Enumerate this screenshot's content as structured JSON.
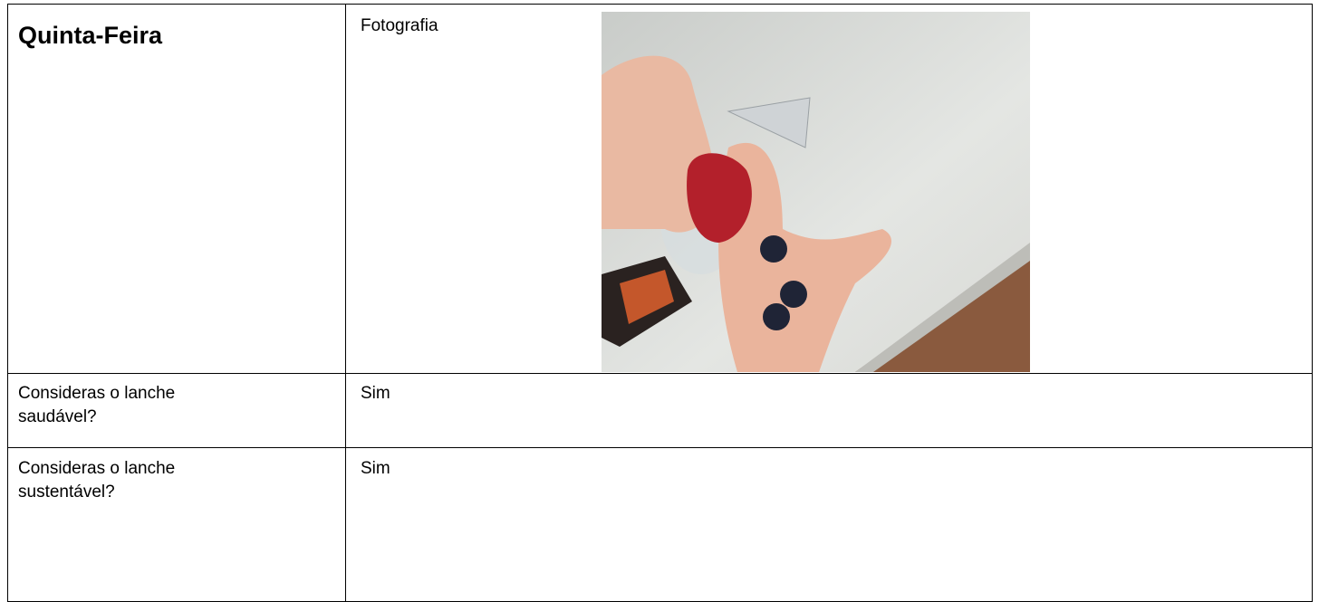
{
  "table": {
    "rows": [
      [
        "Quinta-Feira",
        "Fotografia"
      ],
      [
        "Consideras o lanche saudável?",
        "Sim"
      ],
      [
        "Consideras o lanche sustentável?",
        "Sim"
      ]
    ]
  }
}
